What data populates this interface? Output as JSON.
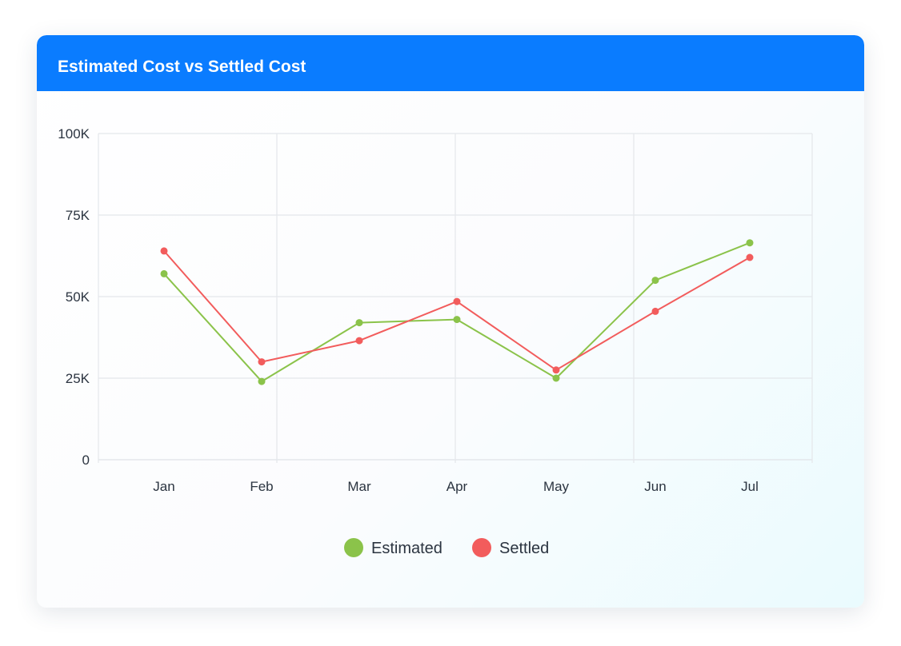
{
  "card": {
    "title": "Estimated Cost vs Settled Cost"
  },
  "colors": {
    "header": "#0a7cff",
    "estimated": "#8bc34a",
    "settled": "#f25c5c",
    "grid": "#e4e7eb",
    "text": "#2b3440"
  },
  "chart_data": {
    "type": "line",
    "title": "Estimated Cost vs Settled Cost",
    "xlabel": "",
    "ylabel": "",
    "categories": [
      "Jan",
      "Feb",
      "Mar",
      "Apr",
      "May",
      "Jun",
      "Jul"
    ],
    "ylim": [
      0,
      100000
    ],
    "yticks": [
      0,
      25000,
      50000,
      75000,
      100000
    ],
    "ytick_labels": [
      "0",
      "25K",
      "50K",
      "75K",
      "100K"
    ],
    "grid": true,
    "legend_position": "bottom",
    "series": [
      {
        "name": "Estimated",
        "color": "#8bc34a",
        "values": [
          57000,
          24000,
          42000,
          43000,
          25000,
          55000,
          66500
        ]
      },
      {
        "name": "Settled",
        "color": "#f25c5c",
        "values": [
          64000,
          30000,
          36500,
          48500,
          27500,
          45500,
          62000
        ]
      }
    ]
  }
}
